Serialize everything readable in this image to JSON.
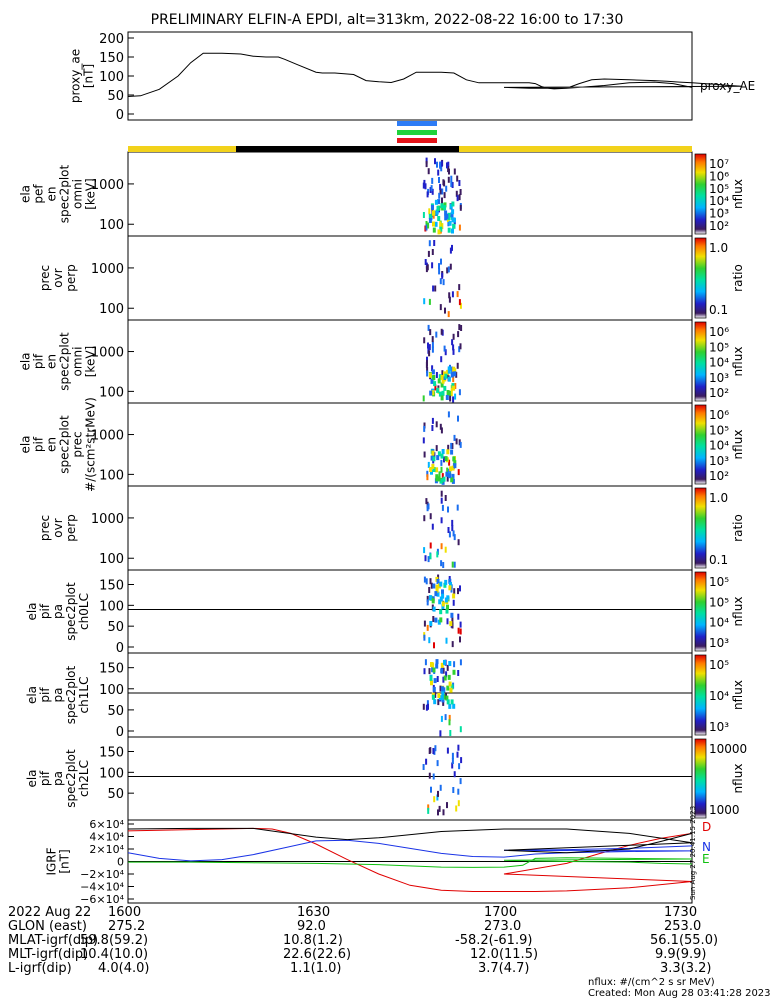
{
  "title": "PRELIMINARY ELFIN-A EPDI, alt=313km, 2022-08-22 16:00 to 17:30",
  "colors": {
    "bar_yellow": "#f2d21b",
    "bar_black": "#000000",
    "flag_blue": "#2d7cf6",
    "flag_green": "#1fd23a",
    "flag_red": "#e5141a",
    "igrf_D": "#e00000",
    "igrf_N": "#1a33e6",
    "igrf_E": "#10c010",
    "igrf_total": "#000000"
  },
  "chart_data": [
    {
      "type": "line",
      "panel": "proxy_ae",
      "ylabel": "proxy_ae\n[nT]",
      "legend": "proxy_AE",
      "yticks": [
        "200",
        "150",
        "100",
        "50",
        "0"
      ],
      "ylim": [
        0,
        200
      ],
      "xlim": [
        1600,
        1730
      ],
      "x": [
        1600,
        1602,
        1605,
        1608,
        1610,
        1612,
        1615,
        1618,
        1620,
        1622,
        1624,
        1625,
        1627,
        1630,
        1631,
        1633,
        1636,
        1638,
        1640,
        1642,
        1644,
        1646,
        1648,
        1650,
        1652,
        1654,
        1656,
        1658,
        1660,
        1661,
        1663,
        1664,
        1665,
        1666,
        1667,
        1668,
        1670,
        1672,
        1674,
        1676,
        1680,
        1684,
        1686,
        1688,
        1690,
        1692,
        1694,
        1696,
        1698,
        1700,
        1704,
        1708,
        1710,
        1712,
        1716,
        1720,
        1724,
        1727,
        1730
      ],
      "y": [
        46,
        48,
        65,
        100,
        135,
        160,
        160,
        158,
        152,
        150,
        150,
        144,
        130,
        110,
        108,
        108,
        104,
        88,
        85,
        83,
        92,
        110,
        110,
        110,
        108,
        90,
        82,
        82,
        82,
        82,
        82,
        82,
        80,
        72,
        68,
        66,
        68,
        80,
        90,
        92,
        90,
        88,
        86,
        84,
        82,
        80,
        78,
        75,
        73,
        70,
        68,
        68,
        68,
        70,
        75,
        82,
        84,
        80,
        70
      ]
    },
    {
      "type": "heatmap",
      "panel": "elfin_a_pef_en_spec2plot_omni",
      "ylabel": "ela\npef\nen\nspec2plot\nomni\n[keV]",
      "yticks": [
        "1000",
        "100"
      ],
      "yscale": "log",
      "zlabel": "nflux",
      "zticks": [
        "10^7",
        "10^6",
        "10^5",
        "10^4",
        "10^3",
        "10^2"
      ]
    },
    {
      "type": "heatmap",
      "panel": "prec_ovr_perp_1",
      "ylabel": "prec\novr\nperp",
      "yticks": [
        "1000",
        "100"
      ],
      "yscale": "log",
      "zlabel": "ratio",
      "zticks": [
        "1.0",
        "0.1"
      ]
    },
    {
      "type": "heatmap",
      "panel": "elfin_a_pif_en_spec2plot_omni",
      "ylabel": "ela\npif\nen\nspec2plot\nomni\n[keV]",
      "yticks": [
        "1000",
        "100"
      ],
      "yscale": "log",
      "zlabel": "nflux",
      "zticks": [
        "10^6",
        "10^5",
        "10^4",
        "10^3",
        "10^2"
      ]
    },
    {
      "type": "heatmap",
      "panel": "elfin_a_pif_en_spec2plot_prec",
      "ylabel": "ela\npif\nen\nspec2plot\nprec\n#/(scm²strMeV)",
      "yticks": [
        "1000",
        "100"
      ],
      "yscale": "log",
      "zlabel": "nflux",
      "zticks": [
        "10^6",
        "10^5",
        "10^4",
        "10^3",
        "10^2"
      ]
    },
    {
      "type": "heatmap",
      "panel": "prec_ovr_perp_2",
      "ylabel": "prec\novr\nperp",
      "yticks": [
        "1000",
        "100"
      ],
      "yscale": "log",
      "zlabel": "ratio",
      "zticks": [
        "1.0",
        "0.1"
      ]
    },
    {
      "type": "heatmap",
      "panel": "elfin_a_pif_pa_spec2plot_ch0LC",
      "ylabel": "ela\npif\npa\nspec2plot\nch0LC",
      "yticks": [
        "150",
        "100",
        "50",
        "0"
      ],
      "ylim": [
        0,
        180
      ],
      "zlabel": "nflux",
      "zticks": [
        "10^5",
        "10^5",
        "10^4",
        "10^3"
      ]
    },
    {
      "type": "heatmap",
      "panel": "elfin_a_pif_pa_spec2plot_ch1LC",
      "ylabel": "ela\npif\npa\nspec2plot\nch1LC",
      "yticks": [
        "150",
        "100",
        "50",
        "0"
      ],
      "ylim": [
        0,
        180
      ],
      "zlabel": "nflux",
      "zticks": [
        "10^5",
        "10^4",
        "10^3"
      ]
    },
    {
      "type": "heatmap",
      "panel": "elfin_a_pif_pa_spec2plot_ch2LC",
      "ylabel": "ela\npif\npa\nspec2plot\nch2LC",
      "yticks": [
        "150",
        "100",
        "50"
      ],
      "ylim": [
        0,
        180
      ],
      "zlabel": "nflux",
      "zticks": [
        "10000",
        "1000"
      ]
    },
    {
      "type": "line",
      "panel": "IGRF",
      "ylabel": "IGRF\n[nT]",
      "yticks": [
        "6×10⁴",
        "4×10⁴",
        "2×10⁴",
        "0",
        "−2×10⁴",
        "−4×10⁴",
        "−6×10⁴"
      ],
      "ylim": [
        -60000,
        60000
      ],
      "xlim": [
        1600,
        1730
      ],
      "series_labels": [
        "D",
        "N",
        "E"
      ],
      "side_text": "Sun Aug 27 20:41:15 2023",
      "series": [
        {
          "name": "D",
          "color": "#e00000",
          "x": [
            1600,
            1605,
            1610,
            1615,
            1620,
            1623,
            1626,
            1630,
            1635,
            1640,
            1645,
            1650,
            1655,
            1660,
            1665,
            1670,
            1680,
            1690,
            1700,
            1710,
            1715,
            1720,
            1725,
            1730
          ],
          "y": [
            49000,
            50000,
            51000,
            52000,
            53000,
            52000,
            45000,
            28000,
            3000,
            -20000,
            -38000,
            -46000,
            -48000,
            -48000,
            -48000,
            -47000,
            -42000,
            -32000,
            -20000,
            -3000,
            12000,
            26000,
            37000,
            45000
          ]
        },
        {
          "name": "N",
          "color": "#1a33e6",
          "x": [
            1600,
            1605,
            1610,
            1615,
            1620,
            1625,
            1630,
            1635,
            1640,
            1645,
            1650,
            1655,
            1660,
            1665,
            1670,
            1680,
            1690,
            1700,
            1710,
            1720,
            1725,
            1730
          ],
          "y": [
            14000,
            5000,
            1000,
            3000,
            11000,
            22000,
            33000,
            34000,
            29000,
            21000,
            13000,
            8000,
            7000,
            12000,
            14000,
            16000,
            17000,
            18000,
            19000,
            21000,
            23000,
            25000
          ]
        },
        {
          "name": "E",
          "color": "#10c010",
          "x": [
            1600,
            1610,
            1620,
            1630,
            1640,
            1650,
            1655,
            1660,
            1663,
            1665,
            1670,
            1680,
            1690,
            1700,
            1710,
            1720,
            1725,
            1730
          ],
          "y": [
            -1000,
            -1000,
            -2000,
            -3000,
            -5000,
            -9000,
            -9500,
            -9000,
            -6000,
            5000,
            6000,
            5000,
            4000,
            2000,
            0,
            -1000,
            -3000,
            -4000
          ]
        },
        {
          "name": "total",
          "color": "#000000",
          "x": [
            1600,
            1610,
            1620,
            1630,
            1635,
            1640,
            1650,
            1660,
            1670,
            1680,
            1690,
            1700,
            1710,
            1720,
            1725,
            1730
          ],
          "y": [
            52000,
            53000,
            53000,
            39000,
            35000,
            38000,
            48000,
            52000,
            52000,
            45000,
            30000,
            18000,
            14000,
            20000,
            32000,
            45000
          ]
        }
      ]
    }
  ],
  "footer": {
    "date_label": "2022 Aug 22",
    "rows": [
      {
        "label": "",
        "values": [
          "1600",
          "1630",
          "1700",
          "1730"
        ]
      },
      {
        "label": "GLON (east)",
        "values": [
          "275.2",
          "92.0",
          "273.0",
          "253.0"
        ]
      },
      {
        "label": "MLAT-igrf(dip)",
        "values": [
          "59.8(59.2)",
          "10.8(1.2)",
          "-58.2(-61.9)",
          "56.1(55.0)"
        ]
      },
      {
        "label": "MLT-igrf(dip)",
        "values": [
          "10.4(10.0)",
          "22.6(22.6)",
          "12.0(11.5)",
          "9.9(9.9)"
        ]
      },
      {
        "label": "L-igrf(dip)",
        "values": [
          "4.0(4.0)",
          "1.1(1.0)",
          "3.7(4.7)",
          "3.3(3.2)"
        ]
      }
    ],
    "units_note": "nflux: #/(cm^2 s sr MeV)",
    "created": "Created: Mon Aug 28 03:41:28 2023"
  }
}
